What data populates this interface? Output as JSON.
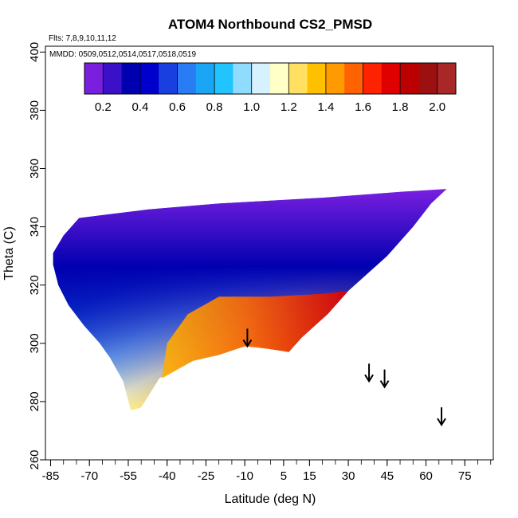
{
  "chart_data": {
    "type": "heatmap",
    "title": "ATOM4 Northbound CS2_PMSD",
    "flights_label": "Flts: 7,8,9,10,11,12",
    "dates_label": "MMDD: 0509,0512,0514,0517,0518,0519",
    "xlabel": "Latitude (deg N)",
    "ylabel": "Theta (C)",
    "xlim": [
      -87,
      86
    ],
    "ylim": [
      260,
      402
    ],
    "x_ticks": [
      -85,
      -70,
      -55,
      -40,
      -25,
      -10,
      5,
      15,
      30,
      45,
      60,
      75
    ],
    "x_ticks_minor_step": 5,
    "y_ticks": [
      260,
      280,
      300,
      320,
      340,
      360,
      380,
      400
    ],
    "colorbar": {
      "min": 0.1,
      "max": 2.1,
      "ticks": [
        0.2,
        0.4,
        0.6,
        0.8,
        1.0,
        1.2,
        1.4,
        1.6,
        1.8,
        2.0
      ],
      "tick_labels": [
        "0.2",
        "0.4",
        "0.6",
        "0.8",
        "1.0",
        "1.2",
        "1.4",
        "1.6",
        "1.8",
        "2.0"
      ],
      "colors": [
        "#7a1fe0",
        "#3a10c8",
        "#0000b0",
        "#0000cc",
        "#1a3fe0",
        "#2a7cf5",
        "#1aa6f5",
        "#22c4ff",
        "#8fdcff",
        "#d6f1ff",
        "#ffffc8",
        "#ffe060",
        "#ffc000",
        "#ff9a00",
        "#ff6200",
        "#ff2200",
        "#e00000",
        "#bc0000",
        "#9c1010",
        "#a82828"
      ]
    },
    "field_outline": [
      [
        -84,
        331
      ],
      [
        -80,
        337
      ],
      [
        -74,
        343
      ],
      [
        -47,
        346
      ],
      [
        -20,
        348
      ],
      [
        20,
        350
      ],
      [
        50,
        352
      ],
      [
        68,
        353
      ],
      [
        62,
        348
      ],
      [
        55,
        340
      ],
      [
        45,
        330
      ],
      [
        30,
        318
      ],
      [
        22,
        310
      ],
      [
        12,
        302
      ],
      [
        7,
        297
      ],
      [
        0,
        298
      ],
      [
        -5,
        299
      ],
      [
        -10,
        299
      ],
      [
        -20,
        296
      ],
      [
        -30,
        294
      ],
      [
        -43,
        288
      ],
      [
        -50,
        278
      ],
      [
        -54,
        277
      ],
      [
        -57,
        287
      ],
      [
        -62,
        295
      ],
      [
        -66,
        300
      ],
      [
        -72,
        306
      ],
      [
        -78,
        313
      ],
      [
        -82,
        320
      ],
      [
        -84,
        327
      ]
    ],
    "high_ratio_region": [
      [
        -42,
        288
      ],
      [
        -30,
        294
      ],
      [
        -20,
        296
      ],
      [
        -10,
        299
      ],
      [
        0,
        298
      ],
      [
        7,
        297
      ],
      [
        12,
        302
      ],
      [
        22,
        310
      ],
      [
        30,
        318
      ],
      [
        20,
        317
      ],
      [
        0,
        316
      ],
      [
        -20,
        316
      ],
      [
        -32,
        310
      ],
      [
        -40,
        300
      ]
    ],
    "arrows": [
      {
        "lat": -9,
        "theta": 299
      },
      {
        "lat": 38,
        "theta": 287
      },
      {
        "lat": 44,
        "theta": 285
      },
      {
        "lat": 66,
        "theta": 272
      }
    ]
  }
}
